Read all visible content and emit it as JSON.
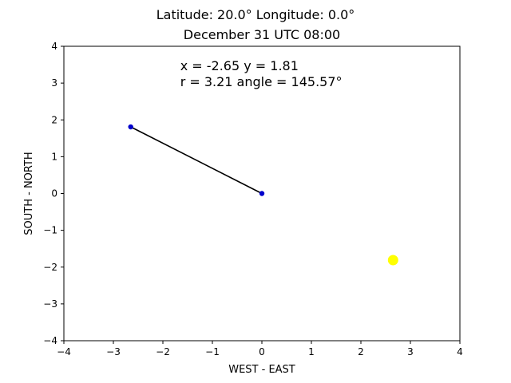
{
  "figure": {
    "title_line1": "Latitude: 20.0° Longitude: 0.0°",
    "title_line2": "December 31 UTC 08:00"
  },
  "chart_data": {
    "type": "line",
    "title": "Latitude: 20.0° Longitude: 0.0°\nDecember 31 UTC 08:00",
    "xlabel": "WEST - EAST",
    "ylabel": "SOUTH - NORTH",
    "xlim": [
      -4,
      4
    ],
    "ylim": [
      -4,
      4
    ],
    "xticks": [
      -4,
      -3,
      -2,
      -1,
      0,
      1,
      2,
      3,
      4
    ],
    "yticks": [
      -4,
      -3,
      -2,
      -1,
      0,
      1,
      2,
      3,
      4
    ],
    "grid": false,
    "series": [
      {
        "x": [
          0,
          -2.65
        ],
        "y": [
          0,
          1.81
        ],
        "line_color": "#000000",
        "marker_color": "#0000cc"
      },
      {
        "x": [
          2.65
        ],
        "y": [
          -1.81
        ],
        "marker_color": "#ffff00"
      }
    ],
    "annotations": [
      {
        "text": "x = -2.65 y = 1.81",
        "x": -1.65,
        "y": 3.35
      },
      {
        "text": "r = 3.21 angle = 145.57°",
        "x": -1.65,
        "y": 2.92
      }
    ]
  }
}
